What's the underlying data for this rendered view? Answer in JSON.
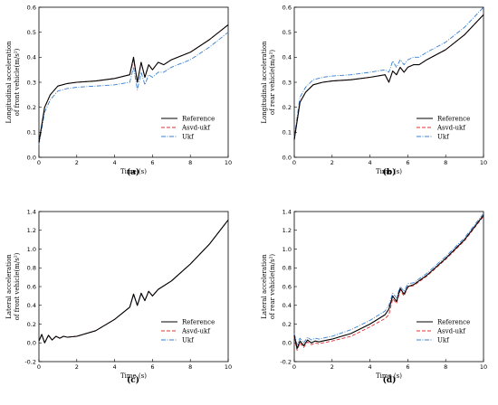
{
  "colors": {
    "reference": "#000000",
    "asvd": "#e03030",
    "ukf": "#3a7fd0"
  },
  "legend": {
    "reference": "Reference",
    "asvd": "Asvd-ukf",
    "ukf": "Ukf"
  },
  "chart_data": [
    {
      "panel": "(a)",
      "type": "line",
      "xlabel": "Time (s)",
      "ylabel_lines": [
        "Longitudinal acceleration",
        "of front vehicle(m/s²)"
      ],
      "xlim": [
        0,
        10
      ],
      "ylim": [
        0,
        0.6
      ],
      "xticks": [
        "0",
        "2",
        "4",
        "6",
        "8",
        "10"
      ],
      "yticks": [
        "0.0",
        "0.1",
        "0.2",
        "0.3",
        "0.4",
        "0.5",
        "0.6"
      ],
      "x": [
        0,
        0.3,
        0.6,
        1,
        1.5,
        2,
        3,
        4,
        4.8,
        5,
        5.2,
        5.4,
        5.6,
        5.8,
        6,
        6.3,
        6.6,
        7,
        8,
        9,
        10
      ],
      "series": [
        {
          "name": "Reference",
          "values": [
            0.06,
            0.2,
            0.25,
            0.285,
            0.295,
            0.3,
            0.305,
            0.315,
            0.33,
            0.4,
            0.3,
            0.38,
            0.32,
            0.37,
            0.35,
            0.38,
            0.37,
            0.39,
            0.42,
            0.47,
            0.53
          ]
        },
        {
          "name": "Asvd-ukf",
          "values": [
            0.06,
            0.2,
            0.25,
            0.285,
            0.295,
            0.3,
            0.305,
            0.315,
            0.33,
            0.39,
            0.3,
            0.38,
            0.32,
            0.37,
            0.35,
            0.38,
            0.37,
            0.39,
            0.42,
            0.47,
            0.53
          ]
        },
        {
          "name": "Ukf",
          "values": [
            0.05,
            0.18,
            0.23,
            0.265,
            0.275,
            0.28,
            0.285,
            0.29,
            0.3,
            0.36,
            0.27,
            0.34,
            0.29,
            0.33,
            0.32,
            0.34,
            0.34,
            0.36,
            0.39,
            0.44,
            0.5
          ]
        }
      ]
    },
    {
      "panel": "(b)",
      "type": "line",
      "xlabel": "Time (s)",
      "ylabel_lines": [
        "Longitudinal acceleration",
        "of rear vehicle(m/s²)"
      ],
      "xlim": [
        0,
        10
      ],
      "ylim": [
        0,
        0.6
      ],
      "xticks": [
        "0",
        "2",
        "4",
        "6",
        "8",
        "10"
      ],
      "yticks": [
        "0.0",
        "0.1",
        "0.2",
        "0.3",
        "0.4",
        "0.5",
        "0.6"
      ],
      "x": [
        0,
        0.3,
        0.6,
        1,
        1.5,
        2,
        3,
        4,
        4.8,
        5,
        5.2,
        5.4,
        5.6,
        5.8,
        6,
        6.3,
        6.6,
        7,
        8,
        9,
        10
      ],
      "series": [
        {
          "name": "Reference",
          "values": [
            0.07,
            0.22,
            0.26,
            0.29,
            0.3,
            0.305,
            0.31,
            0.32,
            0.33,
            0.3,
            0.345,
            0.33,
            0.36,
            0.34,
            0.36,
            0.37,
            0.37,
            0.39,
            0.43,
            0.49,
            0.57
          ]
        },
        {
          "name": "Asvd-ukf",
          "values": [
            0.07,
            0.22,
            0.26,
            0.29,
            0.3,
            0.305,
            0.31,
            0.32,
            0.33,
            0.3,
            0.345,
            0.33,
            0.36,
            0.34,
            0.36,
            0.37,
            0.37,
            0.39,
            0.43,
            0.49,
            0.57
          ]
        },
        {
          "name": "Ukf",
          "values": [
            0.08,
            0.24,
            0.28,
            0.31,
            0.32,
            0.325,
            0.33,
            0.34,
            0.35,
            0.34,
            0.385,
            0.36,
            0.39,
            0.37,
            0.39,
            0.4,
            0.4,
            0.42,
            0.46,
            0.52,
            0.6
          ]
        }
      ]
    },
    {
      "panel": "(c)",
      "type": "line",
      "xlabel": "Time (s)",
      "ylabel_lines": [
        "Lateral acceleration",
        "of front vehicle(m/s²)"
      ],
      "xlim": [
        0,
        10
      ],
      "ylim": [
        -0.2,
        1.4
      ],
      "xticks": [
        "0",
        "2",
        "4",
        "6",
        "8",
        "10"
      ],
      "yticks": [
        "-0.2",
        "0.0",
        "0.2",
        "0.4",
        "0.6",
        "0.8",
        "1.0",
        "1.2",
        "1.4"
      ],
      "x": [
        0,
        0.15,
        0.3,
        0.5,
        0.7,
        0.9,
        1.1,
        1.3,
        1.5,
        2,
        3,
        4,
        4.8,
        5,
        5.2,
        5.4,
        5.6,
        5.8,
        6,
        6.3,
        7,
        8,
        9,
        10
      ],
      "series": [
        {
          "name": "Reference",
          "values": [
            0.02,
            0.09,
            0.0,
            0.08,
            0.03,
            0.07,
            0.05,
            0.07,
            0.06,
            0.07,
            0.13,
            0.25,
            0.38,
            0.52,
            0.4,
            0.53,
            0.45,
            0.55,
            0.5,
            0.57,
            0.66,
            0.84,
            1.05,
            1.31
          ]
        },
        {
          "name": "Asvd-ukf",
          "values": [
            0.02,
            0.09,
            0.0,
            0.08,
            0.03,
            0.07,
            0.05,
            0.07,
            0.06,
            0.07,
            0.13,
            0.25,
            0.38,
            0.52,
            0.4,
            0.53,
            0.45,
            0.55,
            0.5,
            0.57,
            0.66,
            0.84,
            1.05,
            1.31
          ]
        },
        {
          "name": "Ukf",
          "values": [
            0.02,
            0.09,
            0.0,
            0.08,
            0.03,
            0.07,
            0.05,
            0.07,
            0.06,
            0.07,
            0.13,
            0.25,
            0.38,
            0.51,
            0.4,
            0.52,
            0.45,
            0.55,
            0.5,
            0.57,
            0.66,
            0.84,
            1.05,
            1.31
          ]
        }
      ]
    },
    {
      "panel": "(d)",
      "type": "line",
      "xlabel": "Time (s)",
      "ylabel_lines": [
        "Lateral acceleration",
        "of rear vehicle(m/s²)"
      ],
      "xlim": [
        0,
        10
      ],
      "ylim": [
        -0.2,
        1.4
      ],
      "xticks": [
        "0",
        "2",
        "4",
        "6",
        "8",
        "10"
      ],
      "yticks": [
        "-0.2",
        "0.0",
        "0.2",
        "0.4",
        "0.6",
        "0.8",
        "1.0",
        "1.2",
        "1.4"
      ],
      "x": [
        0,
        0.15,
        0.3,
        0.5,
        0.7,
        0.9,
        1.1,
        1.3,
        1.5,
        2,
        3,
        4,
        4.8,
        5,
        5.2,
        5.4,
        5.6,
        5.8,
        6,
        6.3,
        7,
        8,
        9,
        10
      ],
      "series": [
        {
          "name": "Reference",
          "values": [
            0.08,
            -0.06,
            0.02,
            -0.03,
            0.03,
            0.0,
            0.02,
            0.01,
            0.02,
            0.04,
            0.1,
            0.2,
            0.3,
            0.36,
            0.5,
            0.44,
            0.58,
            0.52,
            0.6,
            0.62,
            0.72,
            0.9,
            1.1,
            1.36
          ]
        },
        {
          "name": "Asvd-ukf",
          "values": [
            0.06,
            -0.08,
            0.0,
            -0.05,
            0.01,
            -0.02,
            0.0,
            -0.01,
            0.0,
            0.02,
            0.07,
            0.17,
            0.26,
            0.3,
            0.47,
            0.42,
            0.56,
            0.5,
            0.59,
            0.61,
            0.71,
            0.89,
            1.09,
            1.35
          ]
        },
        {
          "name": "Ukf",
          "values": [
            0.1,
            -0.02,
            0.05,
            0.0,
            0.06,
            0.03,
            0.05,
            0.04,
            0.05,
            0.07,
            0.14,
            0.24,
            0.34,
            0.4,
            0.53,
            0.48,
            0.6,
            0.55,
            0.63,
            0.64,
            0.74,
            0.92,
            1.12,
            1.38
          ]
        }
      ]
    }
  ]
}
